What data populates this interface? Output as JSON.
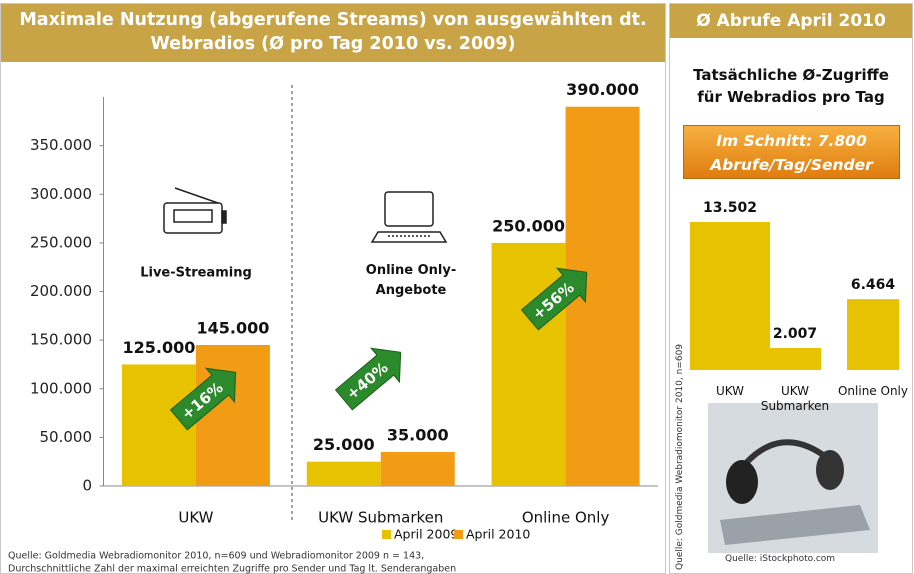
{
  "chart_data": [
    {
      "type": "bar",
      "title": "Maximale Nutzung (abgerufene Streams) von ausgewählten dt. Webradios (Ø pro Tag 2010 vs. 2009)",
      "categories": [
        "UKW",
        "UKW Submarken",
        "Online Only"
      ],
      "series": [
        {
          "name": "April 2009",
          "color": "#e6c200",
          "values": [
            125000,
            25000,
            250000
          ],
          "value_labels": [
            "125.000",
            "25.000",
            "250.000"
          ]
        },
        {
          "name": "April 2010",
          "color": "#f29b14",
          "values": [
            145000,
            35000,
            390000
          ],
          "value_labels": [
            "145.000",
            "35.000",
            "390.000"
          ]
        }
      ],
      "ylim": [
        0,
        400000
      ],
      "yticks": [
        0,
        {
          "value": 50000,
          "label": "50.000"
        },
        {
          "value": 100000,
          "label": "100.000"
        },
        {
          "value": 150000,
          "label": "150.000"
        },
        {
          "value": 200000,
          "label": "200.000"
        },
        {
          "value": 250000,
          "label": "250.000"
        },
        {
          "value": 300000,
          "label": "300.000"
        },
        {
          "value": 350000,
          "label": "350.000"
        }
      ],
      "icon_labels": [
        "Live-Streaming",
        "Online Only-Angebote"
      ],
      "growth_labels": [
        "+16%",
        "+40%",
        "+56%"
      ],
      "source": [
        "Quelle: Goldmedia Webradiomonitor 2010, n=609 und Webradiomonitor 2009 n = 143,",
        "Durchschnittliche Zahl der maximal erreichten Zugriffe pro Sender und Tag lt. Senderangaben"
      ]
    },
    {
      "type": "bar",
      "title": "Ø Abrufe April 2010",
      "subtitle": "Tatsächliche Ø-Zugriffe für Webradios pro Tag",
      "callout": "Im Schnitt: 7.800 Abrufe/Tag/Sender",
      "categories": [
        "UKW",
        "UKW Submarken",
        "Online Only"
      ],
      "values": [
        13502,
        2007,
        6464
      ],
      "value_labels": [
        "13.502",
        "2.007",
        "6.464"
      ],
      "color": "#e6c200",
      "source": "Quelle: Goldmedia Webradiomonitor 2010, n=609",
      "image_source": "Quelle:  iStockphoto.com"
    }
  ]
}
